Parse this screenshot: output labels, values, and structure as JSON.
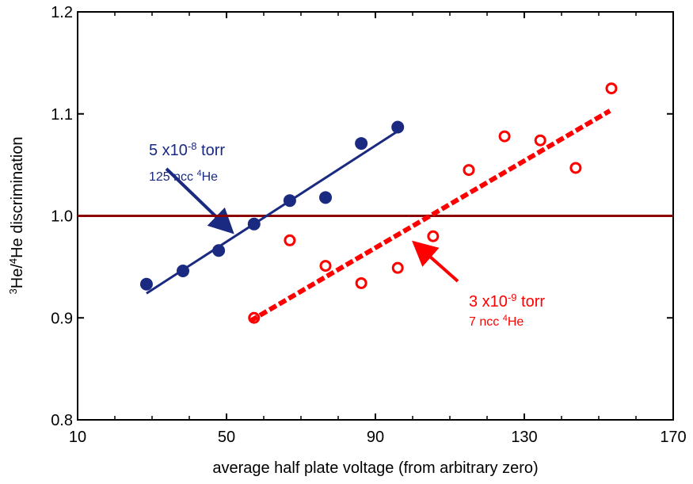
{
  "chart_data": {
    "type": "scatter",
    "xlabel": "average half plate voltage (from arbitrary zero)",
    "ylabel_parts": [
      "3",
      "He/",
      "4",
      "He discrimination"
    ],
    "xlim": [
      10,
      170
    ],
    "xticks": [
      10,
      50,
      90,
      130,
      170
    ],
    "xminorticks": [
      20,
      30,
      40,
      60,
      70,
      80,
      100,
      110,
      120,
      140,
      150,
      160
    ],
    "ylim": [
      0.8,
      1.2
    ],
    "yticks": [
      0.8,
      0.9,
      {
        "value": 1.0,
        "label": "1.0"
      },
      1.1,
      1.2
    ],
    "series": [
      {
        "color": "#1a2a80",
        "filled": true,
        "x": [
          28.5,
          38.3,
          47.9,
          57.4,
          67.0,
          76.6,
          86.2,
          96.0
        ],
        "y": [
          0.933,
          0.946,
          0.966,
          0.992,
          1.015,
          1.018,
          1.071,
          1.087
        ]
      },
      {
        "color": "#ff0000",
        "filled": false,
        "x": [
          57.4,
          67.0,
          76.6,
          86.2,
          96.0,
          105.5,
          115.1,
          124.7,
          134.3,
          143.8,
          153.4
        ],
        "y": [
          0.9,
          0.976,
          0.951,
          0.934,
          0.949,
          0.98,
          1.045,
          1.078,
          1.074,
          1.047,
          1.125
        ]
      }
    ],
    "fits": [
      {
        "color": "#1a2a80",
        "dashed": false,
        "x": [
          28.5,
          96.0
        ],
        "y": [
          0.924,
          1.083
        ]
      },
      {
        "color": "#ff0000",
        "dashed": true,
        "x": [
          56.4,
          153.0
        ],
        "y": [
          0.897,
          1.103
        ]
      }
    ],
    "hline": {
      "value": 1.0,
      "color": "#8b0000"
    },
    "annotations": [
      {
        "line1": [
          "5 x10",
          "-8",
          " torr"
        ],
        "line2": [
          "125 ncc ",
          "4",
          "He"
        ]
      },
      {
        "line1": [
          "3 x10",
          "-9",
          " torr"
        ],
        "line2": [
          "7 ncc ",
          "4",
          "He"
        ]
      }
    ]
  }
}
